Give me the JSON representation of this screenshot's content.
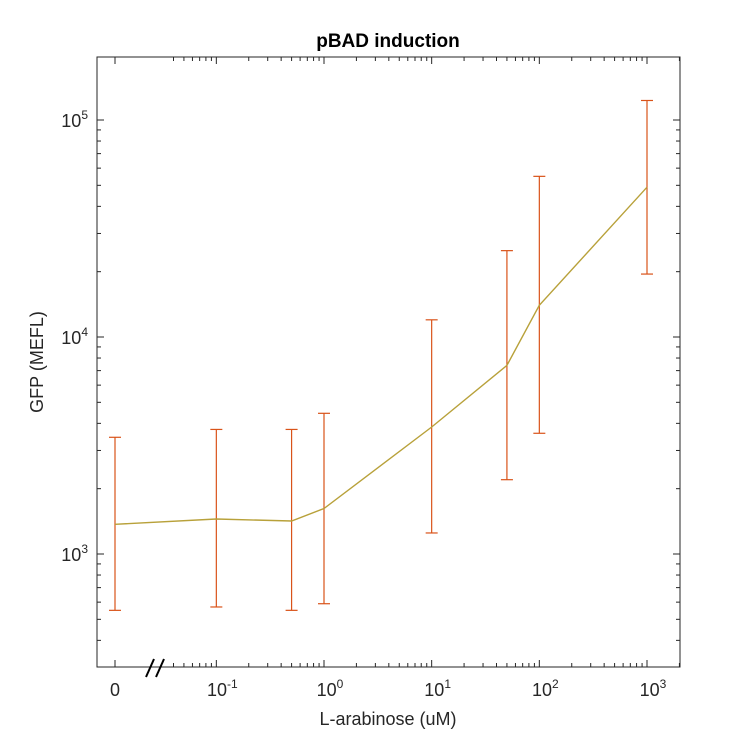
{
  "chart_data": {
    "type": "line",
    "title": "pBAD induction",
    "xlabel": "L-arabinose (uM)",
    "ylabel": "GFP (MEFL)",
    "x_scale": "log",
    "y_scale": "log",
    "xlim": [
      0.01,
      2000
    ],
    "ylim": [
      300,
      200000
    ],
    "axis_break": true,
    "x_tick_labels": [
      {
        "value": 0,
        "base": "0",
        "exp": ""
      },
      {
        "value": 0.1,
        "base": "10",
        "exp": "-1"
      },
      {
        "value": 1,
        "base": "10",
        "exp": "0"
      },
      {
        "value": 10,
        "base": "10",
        "exp": "1"
      },
      {
        "value": 100,
        "base": "10",
        "exp": "2"
      },
      {
        "value": 1000,
        "base": "10",
        "exp": "3"
      }
    ],
    "y_tick_labels": [
      {
        "value": 1000,
        "base": "10",
        "exp": "3"
      },
      {
        "value": 10000,
        "base": "10",
        "exp": "4"
      },
      {
        "value": 100000,
        "base": "10",
        "exp": "5"
      }
    ],
    "colors": {
      "line": "#b8a13a",
      "errorbar": "#d95319",
      "axis": "#262626"
    },
    "series": [
      {
        "points": [
          {
            "x": 0,
            "y": 1370,
            "lower": 550,
            "upper": 3450
          },
          {
            "x": 0.1,
            "y": 1450,
            "lower": 570,
            "upper": 3750
          },
          {
            "x": 0.5,
            "y": 1420,
            "lower": 550,
            "upper": 3750
          },
          {
            "x": 1,
            "y": 1620,
            "lower": 590,
            "upper": 4450
          },
          {
            "x": 10,
            "y": 3850,
            "lower": 1250,
            "upper": 12000
          },
          {
            "x": 50,
            "y": 7400,
            "lower": 2200,
            "upper": 25000
          },
          {
            "x": 100,
            "y": 14000,
            "lower": 3600,
            "upper": 55000
          },
          {
            "x": 1000,
            "y": 49000,
            "lower": 19500,
            "upper": 123000
          }
        ]
      }
    ]
  }
}
